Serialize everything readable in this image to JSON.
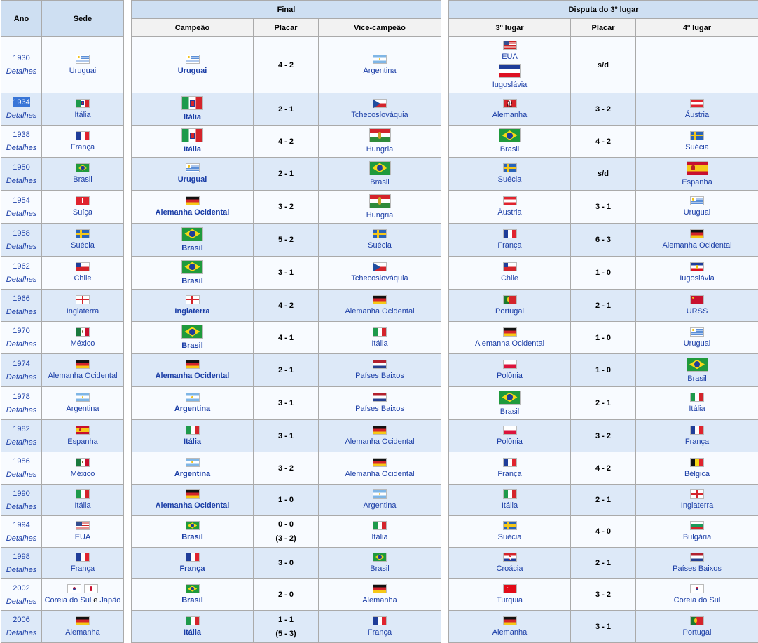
{
  "headers": {
    "ano": "Ano",
    "sede": "Sede",
    "final": "Final",
    "disputa": "Disputa do 3º lugar",
    "campeao": "Campeão",
    "placar": "Placar",
    "vice": "Vice-campeão",
    "terceiro": "3º lugar",
    "placar2": "Placar",
    "quarto": "4º lugar"
  },
  "details_label": "Detalhes",
  "rows": [
    {
      "year": "1930",
      "host": "Uruguai",
      "host_flags": [
        "uru"
      ],
      "champ": "Uruguai",
      "champ_flag": "uru",
      "score": "4 - 2",
      "pens": "",
      "runner": "Argentina",
      "runner_flag": "arg",
      "third": "EUA",
      "third_flag": "usa",
      "third2": "Iugoslávia",
      "third2_flag": "yug",
      "score3": "s/d",
      "fourth": "",
      "fourth_flag": ""
    },
    {
      "year": "1934",
      "host": "Itália",
      "host_flags": [
        "ita34"
      ],
      "champ": "Itália",
      "champ_flag": "ita34",
      "score": "2 - 1",
      "pens": "",
      "runner": "Tchecoslováquia",
      "runner_flag": "cze",
      "third": "Alemanha",
      "third_flag": "naz",
      "score3": "3 - 2",
      "fourth": "Áustria",
      "fourth_flag": "aut"
    },
    {
      "year": "1938",
      "host": "França",
      "host_flags": [
        "fra"
      ],
      "champ": "Itália",
      "champ_flag": "ita34",
      "score": "4 - 2",
      "pens": "",
      "runner": "Hungria",
      "runner_flag": "hun",
      "third": "Brasil",
      "third_flag": "bra",
      "score3": "4 - 2",
      "fourth": "Suécia",
      "fourth_flag": "swe"
    },
    {
      "year": "1950",
      "host": "Brasil",
      "host_flags": [
        "bra"
      ],
      "champ": "Uruguai",
      "champ_flag": "uru",
      "score": "2 - 1",
      "pens": "",
      "runner": "Brasil",
      "runner_flag": "bra",
      "third": "Suécia",
      "third_flag": "swe",
      "score3": "s/d",
      "fourth": "Espanha",
      "fourth_flag": "esp"
    },
    {
      "year": "1954",
      "host": "Suíça",
      "host_flags": [
        "sui"
      ],
      "champ": "Alemanha Ocidental",
      "champ_flag": "ger",
      "score": "3 - 2",
      "pens": "",
      "runner": "Hungria",
      "runner_flag": "hun",
      "third": "Áustria",
      "third_flag": "aut",
      "score3": "3 - 1",
      "fourth": "Uruguai",
      "fourth_flag": "uru"
    },
    {
      "year": "1958",
      "host": "Suécia",
      "host_flags": [
        "swe"
      ],
      "champ": "Brasil",
      "champ_flag": "bra",
      "score": "5 - 2",
      "pens": "",
      "runner": "Suécia",
      "runner_flag": "swe",
      "third": "França",
      "third_flag": "fra",
      "score3": "6 - 3",
      "fourth": "Alemanha Ocidental",
      "fourth_flag": "ger"
    },
    {
      "year": "1962",
      "host": "Chile",
      "host_flags": [
        "chi"
      ],
      "champ": "Brasil",
      "champ_flag": "bra",
      "score": "3 - 1",
      "pens": "",
      "runner": "Tchecoslováquia",
      "runner_flag": "cze",
      "third": "Chile",
      "third_flag": "chi",
      "score3": "1 - 0",
      "fourth": "Iugoslávia",
      "fourth_flag": "yug2"
    },
    {
      "year": "1966",
      "host": "Inglaterra",
      "host_flags": [
        "eng"
      ],
      "champ": "Inglaterra",
      "champ_flag": "eng",
      "score": "4 - 2",
      "pens": "",
      "runner": "Alemanha Ocidental",
      "runner_flag": "ger",
      "third": "Portugal",
      "third_flag": "por",
      "score3": "2 - 1",
      "fourth": "URSS",
      "fourth_flag": "urs"
    },
    {
      "year": "1970",
      "host": "México",
      "host_flags": [
        "mex"
      ],
      "champ": "Brasil",
      "champ_flag": "bra",
      "score": "4 - 1",
      "pens": "",
      "runner": "Itália",
      "runner_flag": "ita",
      "third": "Alemanha Ocidental",
      "third_flag": "ger",
      "score3": "1 - 0",
      "fourth": "Uruguai",
      "fourth_flag": "uru"
    },
    {
      "year": "1974",
      "host": "Alemanha Ocidental",
      "host_flags": [
        "ger"
      ],
      "champ": "Alemanha Ocidental",
      "champ_flag": "ger",
      "score": "2 - 1",
      "pens": "",
      "runner": "Países Baixos",
      "runner_flag": "ned",
      "third": "Polônia",
      "third_flag": "pol",
      "score3": "1 - 0",
      "fourth": "Brasil",
      "fourth_flag": "bra"
    },
    {
      "year": "1978",
      "host": "Argentina",
      "host_flags": [
        "arg"
      ],
      "champ": "Argentina",
      "champ_flag": "arg",
      "score": "3 - 1",
      "pens": "",
      "runner": "Países Baixos",
      "runner_flag": "ned",
      "third": "Brasil",
      "third_flag": "bra",
      "score3": "2 - 1",
      "fourth": "Itália",
      "fourth_flag": "ita"
    },
    {
      "year": "1982",
      "host": "Espanha",
      "host_flags": [
        "esp"
      ],
      "champ": "Itália",
      "champ_flag": "ita",
      "score": "3 - 1",
      "pens": "",
      "runner": "Alemanha Ocidental",
      "runner_flag": "ger",
      "third": "Polônia",
      "third_flag": "pol",
      "score3": "3 - 2",
      "fourth": "França",
      "fourth_flag": "fra"
    },
    {
      "year": "1986",
      "host": "México",
      "host_flags": [
        "mex"
      ],
      "champ": "Argentina",
      "champ_flag": "arg",
      "score": "3 - 2",
      "pens": "",
      "runner": "Alemanha Ocidental",
      "runner_flag": "ger",
      "third": "França",
      "third_flag": "fra",
      "score3": "4 - 2",
      "fourth": "Bélgica",
      "fourth_flag": "bel"
    },
    {
      "year": "1990",
      "host": "Itália",
      "host_flags": [
        "ita"
      ],
      "champ": "Alemanha Ocidental",
      "champ_flag": "ger",
      "score": "1 - 0",
      "pens": "",
      "runner": "Argentina",
      "runner_flag": "arg",
      "third": "Itália",
      "third_flag": "ita",
      "score3": "2 - 1",
      "fourth": "Inglaterra",
      "fourth_flag": "eng"
    },
    {
      "year": "1994",
      "host": "EUA",
      "host_flags": [
        "usa"
      ],
      "champ": "Brasil",
      "champ_flag": "bra",
      "score": "0 - 0",
      "pens": "(3 - 2)",
      "runner": "Itália",
      "runner_flag": "ita",
      "third": "Suécia",
      "third_flag": "swe",
      "score3": "4 - 0",
      "fourth": "Bulgária",
      "fourth_flag": "bul"
    },
    {
      "year": "1998",
      "host": "França",
      "host_flags": [
        "fra"
      ],
      "champ": "França",
      "champ_flag": "fra",
      "score": "3 - 0",
      "pens": "",
      "runner": "Brasil",
      "runner_flag": "bra",
      "third": "Croácia",
      "third_flag": "cro",
      "score3": "2 - 1",
      "fourth": "Países Baixos",
      "fourth_flag": "ned"
    },
    {
      "year": "2002",
      "host": "Coreia do Sul",
      "host_and": "e",
      "host2": "Japão",
      "host_flags": [
        "kor",
        "jpn"
      ],
      "champ": "Brasil",
      "champ_flag": "bra",
      "score": "2 - 0",
      "pens": "",
      "runner": "Alemanha",
      "runner_flag": "ger",
      "third": "Turquia",
      "third_flag": "tur",
      "score3": "3 - 2",
      "fourth": "Coreia do Sul",
      "fourth_flag": "kor"
    },
    {
      "year": "2006",
      "host": "Alemanha",
      "host_flags": [
        "ger"
      ],
      "champ": "Itália",
      "champ_flag": "ita",
      "score": "1 - 1",
      "pens": "(5 - 3)",
      "runner": "França",
      "runner_flag": "fra",
      "third": "Alemanha",
      "third_flag": "ger",
      "score3": "3 - 1",
      "fourth": "Portugal",
      "fourth_flag": "por"
    }
  ],
  "selected_year": "1934"
}
